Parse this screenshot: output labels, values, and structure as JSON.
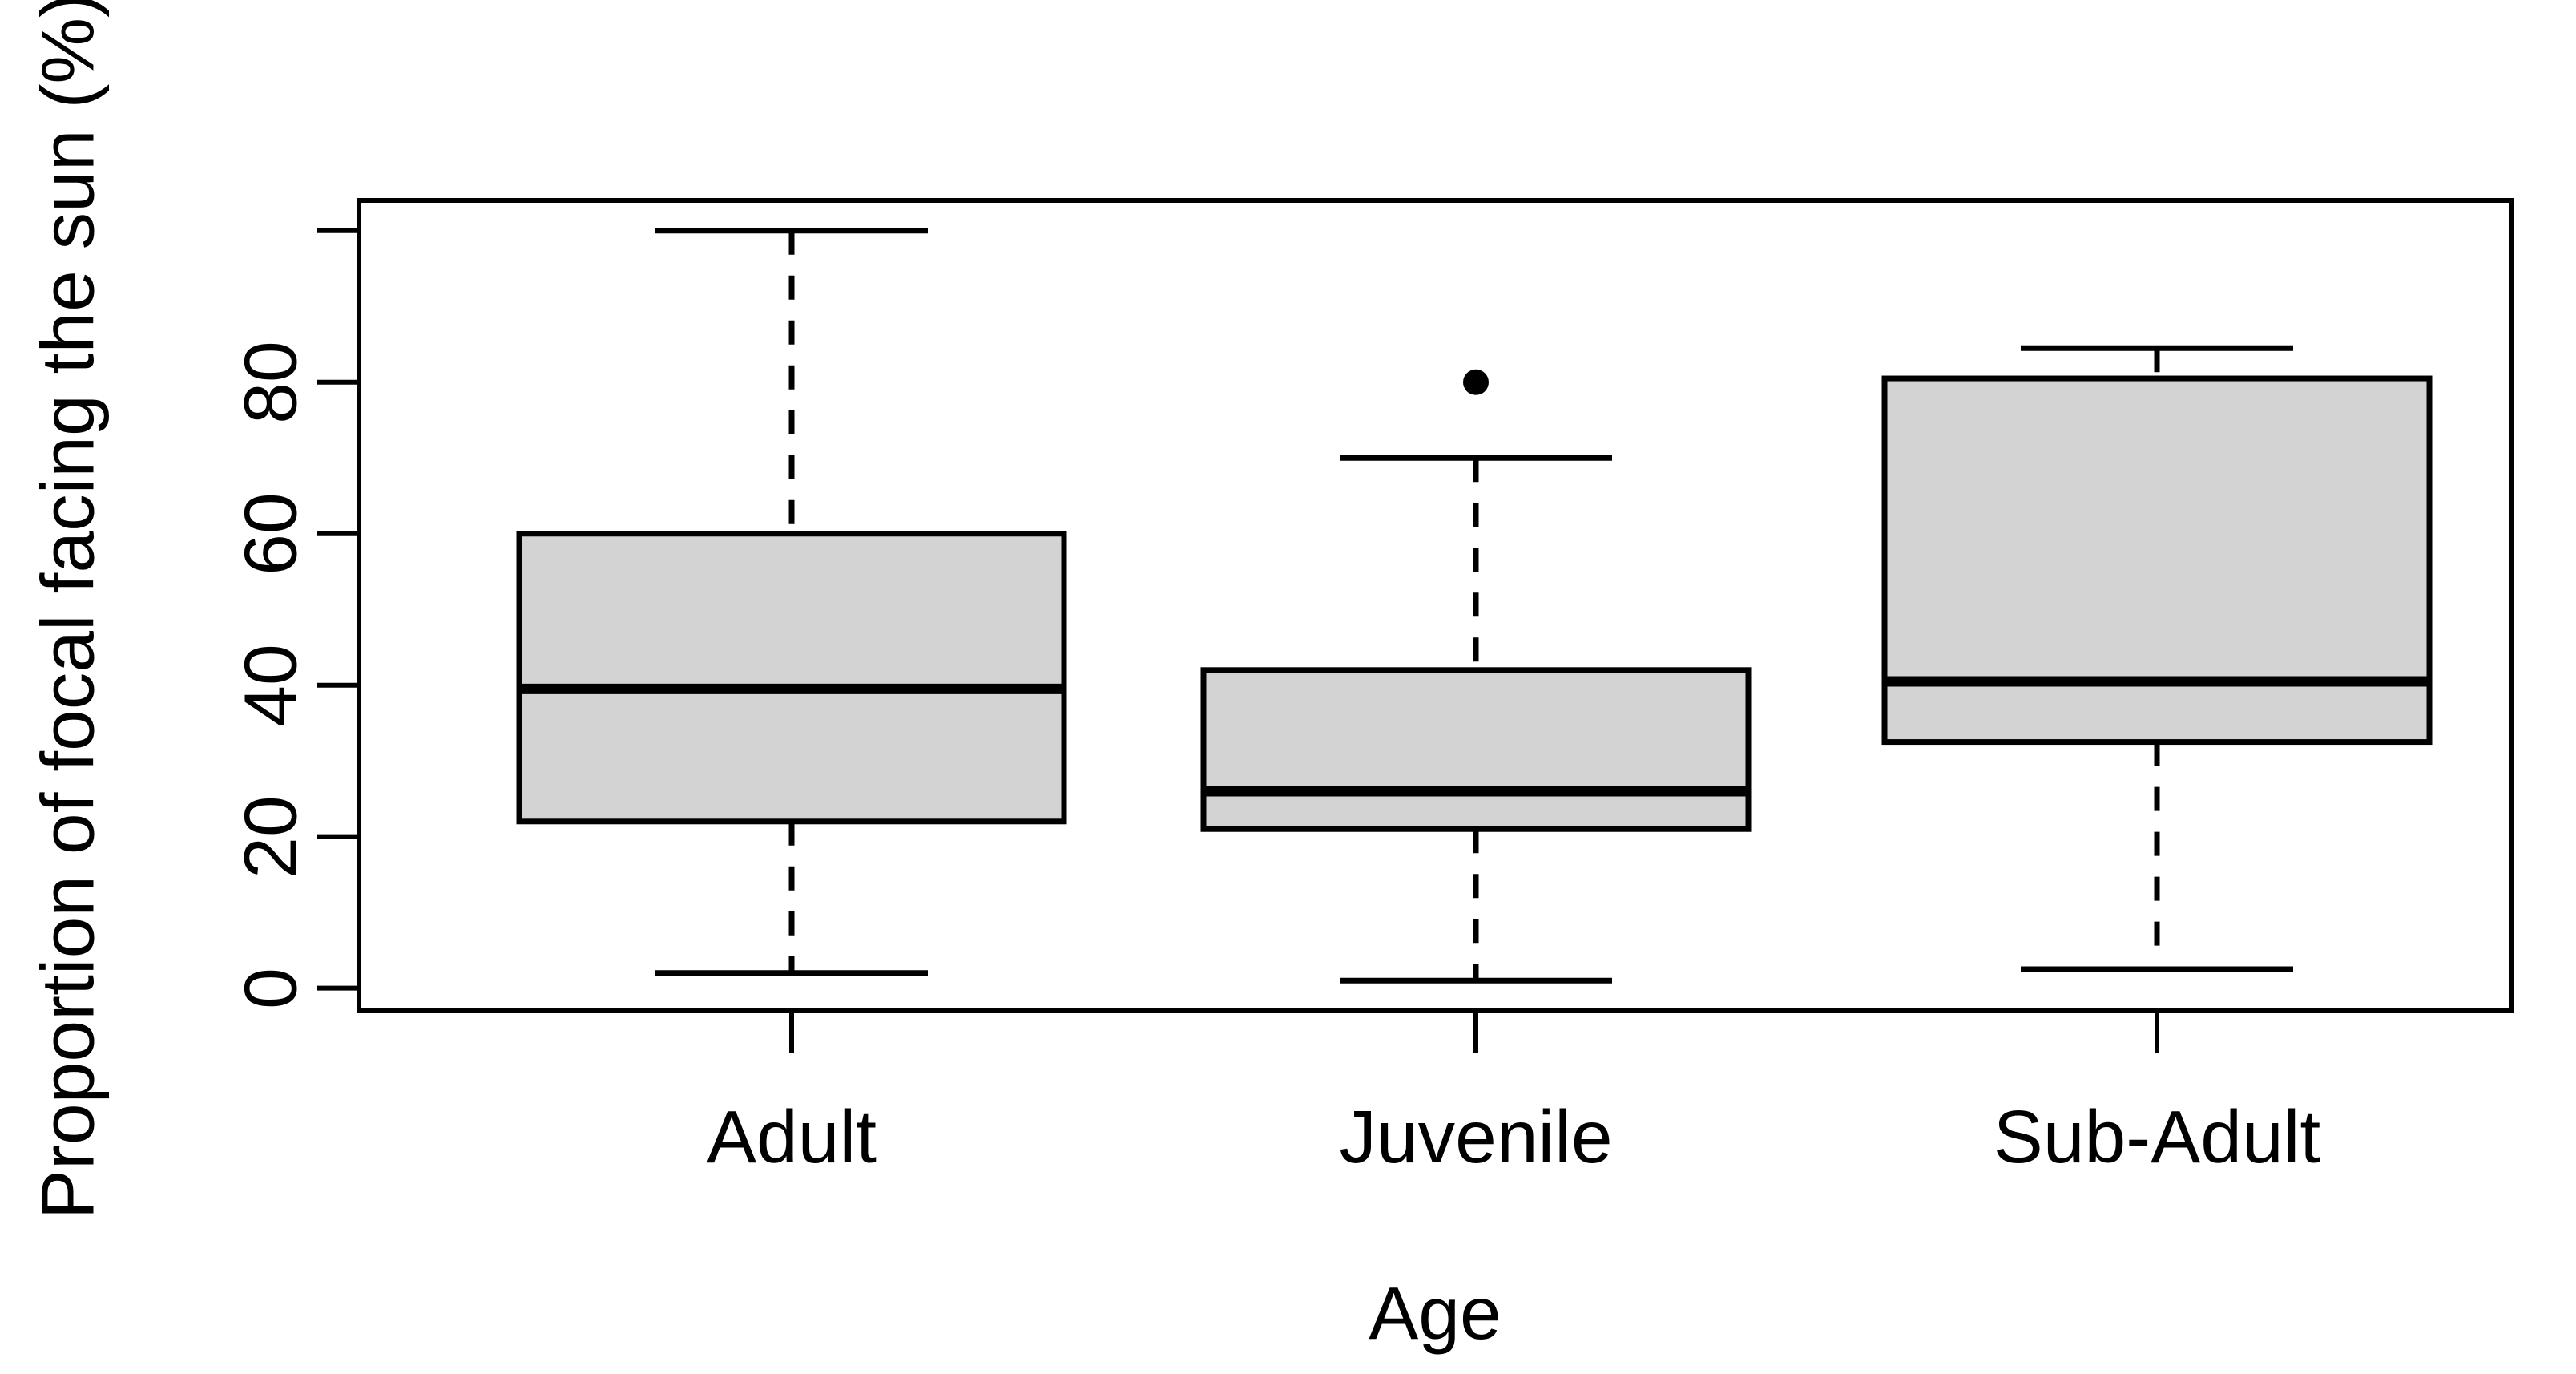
{
  "figure": {
    "background": "#ffffff",
    "text_color": "#000000"
  },
  "chart_data": {
    "type": "boxplot",
    "title": "",
    "xlabel": "Age",
    "ylabel": "Proportion of focal facing the sun (%)",
    "categories": [
      "Adult",
      "Juvenile",
      "Sub-Adult"
    ],
    "series": [
      {
        "name": "Adult",
        "min": 2,
        "q1": 22,
        "median": 39.5,
        "q3": 60,
        "max": 100,
        "outliers": []
      },
      {
        "name": "Juvenile",
        "min": 1,
        "q1": 21,
        "median": 26,
        "q3": 42,
        "max": 70,
        "outliers": [
          80
        ]
      },
      {
        "name": "Sub-Adult",
        "min": 2.5,
        "q1": 32.5,
        "median": 40.5,
        "q3": 80.5,
        "max": 84.5,
        "outliers": []
      }
    ],
    "y_axis": {
      "tick_values": [
        0,
        20,
        40,
        60,
        80
      ],
      "tick_labels": [
        "0",
        "20",
        "40",
        "60",
        "80"
      ],
      "unlabeled_tick_values": [
        100
      ],
      "ylim": [
        0,
        100
      ],
      "drawn_range": [
        -3,
        104
      ]
    },
    "x_axis": {
      "tick_labels": [
        "Adult",
        "Juvenile",
        "Sub-Adult"
      ]
    },
    "style": {
      "box_fill": "#d3d3d3",
      "line_color": "#000000",
      "outlier_style": "filled-circle"
    },
    "grid": false,
    "legend": null
  }
}
